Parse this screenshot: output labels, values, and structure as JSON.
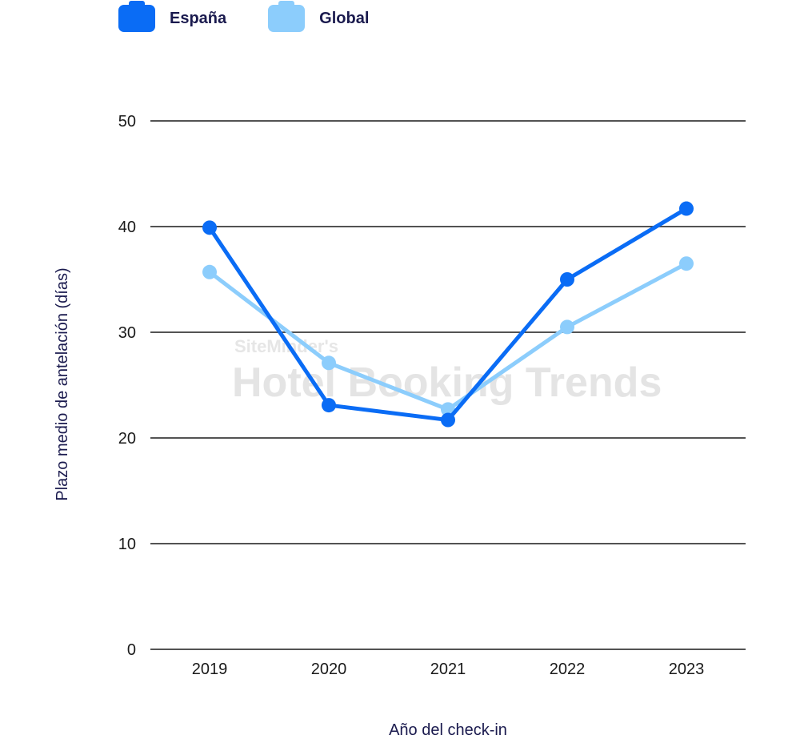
{
  "legend": [
    {
      "label": "España",
      "color": "#0a6cf5"
    },
    {
      "label": "Global",
      "color": "#8ccdfc"
    }
  ],
  "watermark": {
    "line1": "SiteMinder's",
    "line2": "Hotel Booking Trends"
  },
  "chart_data": {
    "type": "line",
    "title": "",
    "xlabel": "Año del check-in",
    "ylabel": "Plazo medio de antelación (días)",
    "categories": [
      "2019",
      "2020",
      "2021",
      "2022",
      "2023"
    ],
    "ylim": [
      0,
      50
    ],
    "yticks": [
      0,
      10,
      20,
      30,
      40,
      50
    ],
    "grid": true,
    "legend_position": "top-left",
    "series": [
      {
        "name": "España",
        "color": "#0a6cf5",
        "values": [
          39.9,
          23.1,
          21.7,
          35.0,
          41.7
        ]
      },
      {
        "name": "Global",
        "color": "#8ccdfc",
        "values": [
          35.7,
          27.1,
          22.7,
          30.5,
          36.5
        ]
      }
    ]
  }
}
